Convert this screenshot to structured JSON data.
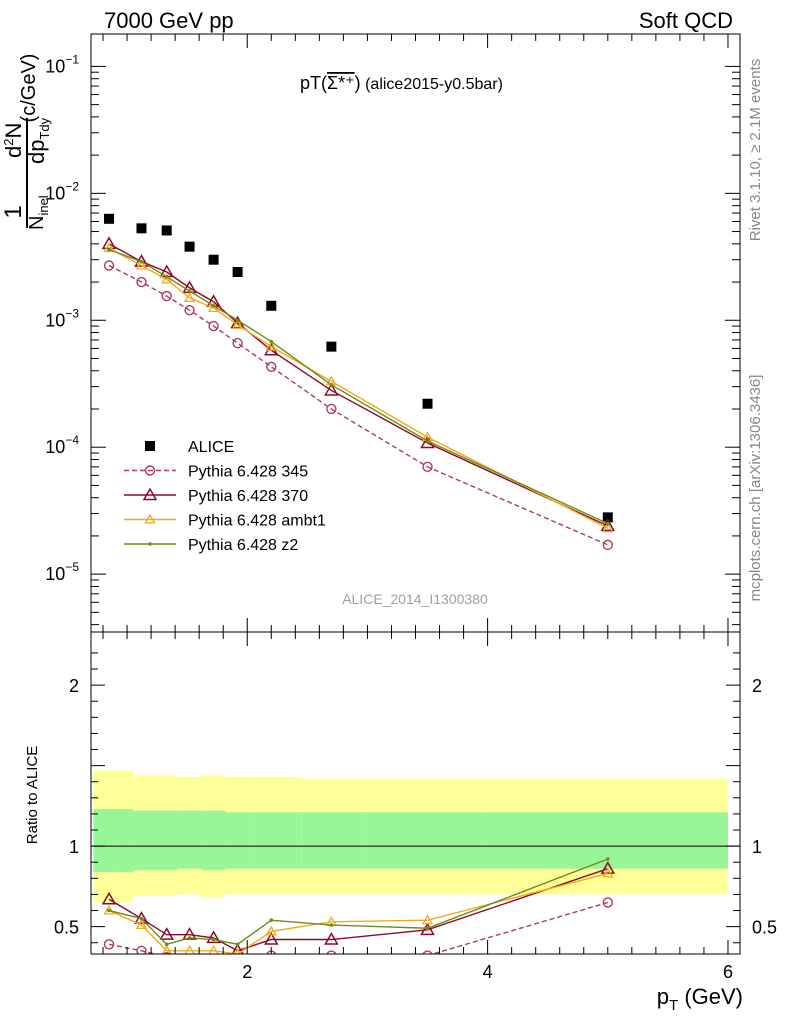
{
  "header": {
    "left": "7000 GeV pp",
    "right": "Soft QCD"
  },
  "side_labels": {
    "rivet": "Rivet 3.1.10, ≥ 2.1M events",
    "mcplots": "mcplots.cern.ch [arXiv:1306.3436]"
  },
  "plot_title": {
    "main": "pT(",
    "particle": "Σ*⁺",
    "close": ")",
    "sub": " (alice2015-y0.5bar)"
  },
  "watermark": "ALICE_2014_I1300380",
  "colors": {
    "data": "#000000",
    "p345": "#b03a5b",
    "p370": "#8b0a2a",
    "ambt1": "#f2a81d",
    "z2": "#708a16",
    "band_inner": "#98f598",
    "band_outer": "#ffff99"
  },
  "chart_data": [
    {
      "type": "scatter",
      "name": "main-spectrum",
      "x_axis": {
        "label": "p_T (GeV)",
        "range": [
          0.7,
          6.1
        ],
        "ticks": [
          2,
          4,
          6
        ]
      },
      "y_axis": {
        "label": "1/N_inel d²N/dp_T dy (c/GeV)",
        "scale": "log",
        "range": [
          3.5e-06,
          0.18
        ],
        "tick_labels": [
          "10^-5",
          "10^-4",
          "10^-3",
          "10^-2",
          "10^-1"
        ]
      },
      "legend_position": "bottom-left",
      "legend": [
        "ALICE",
        "Pythia 6.428 345",
        "Pythia 6.428 370",
        "Pythia 6.428 ambt1",
        "Pythia 6.428 z2"
      ],
      "x": [
        0.85,
        1.12,
        1.33,
        1.52,
        1.72,
        1.92,
        2.2,
        2.7,
        3.5,
        5.0
      ],
      "series": [
        {
          "name": "ALICE",
          "style": "data",
          "values": [
            0.0063,
            0.0053,
            0.0051,
            0.0038,
            0.003,
            0.0024,
            0.0013,
            0.00062,
            0.00022,
            2.8e-05
          ]
        },
        {
          "name": "Pythia 6.428 345",
          "style": "p345",
          "values": [
            0.0027,
            0.002,
            0.00155,
            0.0012,
            0.0009,
            0.00066,
            0.00043,
            0.0002,
            7e-05,
            1.7e-05
          ]
        },
        {
          "name": "Pythia 6.428 370",
          "style": "p370",
          "values": [
            0.004,
            0.0029,
            0.0024,
            0.0018,
            0.0014,
            0.00095,
            0.00058,
            0.00028,
            0.000108,
            2.4e-05
          ]
        },
        {
          "name": "Pythia 6.428 ambt1",
          "style": "ambt1",
          "values": [
            0.0037,
            0.0027,
            0.0021,
            0.0015,
            0.00125,
            0.00092,
            0.00062,
            0.00033,
            0.00012,
            2.3e-05
          ]
        },
        {
          "name": "Pythia 6.428 z2",
          "style": "z2",
          "values": [
            0.0036,
            0.0029,
            0.0022,
            0.0017,
            0.0013,
            0.001,
            0.00068,
            0.00031,
            0.000112,
            2.5e-05
          ]
        }
      ]
    },
    {
      "type": "line",
      "name": "ratio",
      "x_axis": {
        "label": "p_T (GeV)",
        "range": [
          0.7,
          6.1
        ],
        "ticks": [
          2,
          4,
          6
        ]
      },
      "y_axis": {
        "label": "Ratio to ALICE",
        "range": [
          0.33,
          2.33
        ],
        "tick_labels": [
          0.5,
          1,
          2
        ]
      },
      "bands": {
        "edges": [
          0.72,
          0.9,
          1.05,
          1.22,
          1.42,
          1.62,
          1.82,
          2.02,
          2.45,
          3.0,
          4.0,
          6.0
        ],
        "inner_lo": [
          0.84,
          0.84,
          0.85,
          0.85,
          0.86,
          0.85,
          0.86,
          0.86,
          0.86,
          0.86,
          0.86
        ],
        "inner_hi": [
          1.23,
          1.23,
          1.22,
          1.22,
          1.22,
          1.22,
          1.21,
          1.21,
          1.21,
          1.21,
          1.21
        ],
        "outer_lo": [
          0.65,
          0.65,
          0.69,
          0.69,
          0.7,
          0.68,
          0.7,
          0.7,
          0.7,
          0.7,
          0.7
        ],
        "outer_hi": [
          1.47,
          1.47,
          1.44,
          1.44,
          1.43,
          1.44,
          1.43,
          1.43,
          1.42,
          1.42,
          1.42
        ]
      },
      "x": [
        0.85,
        1.12,
        1.33,
        1.52,
        1.72,
        1.92,
        2.2,
        2.7,
        3.5,
        5.0
      ],
      "series": [
        {
          "name": "Pythia 6.428 345",
          "style": "p345",
          "values": [
            0.39,
            0.35,
            0.31,
            0.3,
            0.3,
            0.28,
            0.32,
            0.32,
            0.32,
            0.65
          ]
        },
        {
          "name": "Pythia 6.428 370",
          "style": "p370",
          "values": [
            0.67,
            0.55,
            0.45,
            0.45,
            0.43,
            0.35,
            0.42,
            0.42,
            0.48,
            0.86
          ]
        },
        {
          "name": "Pythia 6.428 ambt1",
          "style": "ambt1",
          "values": [
            0.6,
            0.51,
            0.35,
            0.35,
            0.35,
            0.33,
            0.47,
            0.53,
            0.54,
            0.83
          ]
        },
        {
          "name": "Pythia 6.428 z2",
          "style": "z2",
          "values": [
            0.6,
            0.55,
            0.39,
            0.43,
            0.42,
            0.39,
            0.54,
            0.51,
            0.49,
            0.92
          ]
        }
      ]
    }
  ]
}
